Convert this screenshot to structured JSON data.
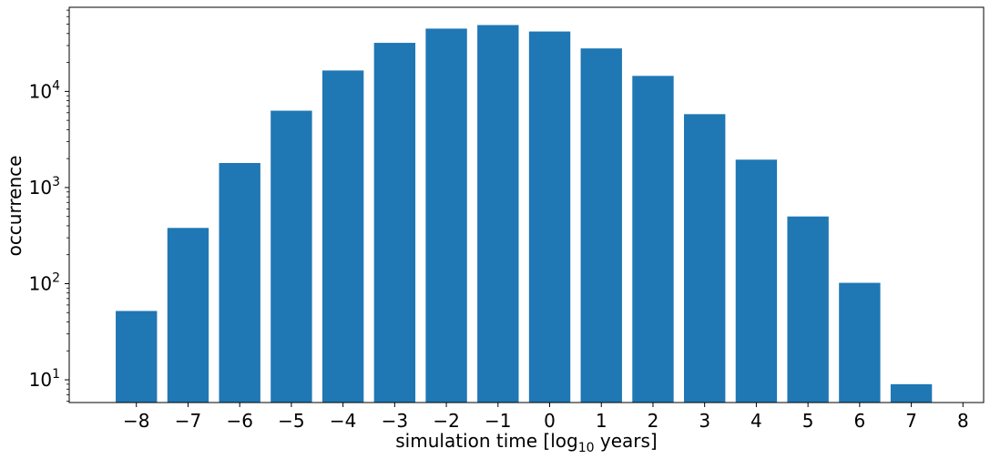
{
  "chart_data": {
    "type": "bar",
    "x": [
      -8,
      -7,
      -6,
      -5,
      -4,
      -3,
      -2,
      -1,
      0,
      1,
      2,
      3,
      4,
      5,
      6,
      7,
      8
    ],
    "values": [
      52,
      380,
      1800,
      6300,
      16500,
      32000,
      45000,
      49000,
      42000,
      28000,
      14500,
      5800,
      1950,
      500,
      102,
      9,
      null
    ],
    "xticks": [
      "−8",
      "−7",
      "−6",
      "−5",
      "−4",
      "−3",
      "−2",
      "−1",
      "0",
      "1",
      "2",
      "3",
      "4",
      "5",
      "6",
      "7",
      "8"
    ],
    "yticks": [
      {
        "value": 10,
        "base": "10",
        "exp": "1"
      },
      {
        "value": 100,
        "base": "10",
        "exp": "2"
      },
      {
        "value": 1000,
        "base": "10",
        "exp": "3"
      },
      {
        "value": 10000,
        "base": "10",
        "exp": "4"
      }
    ],
    "xlabel": {
      "text": "simulation time [log",
      "sub": "10",
      "tail": " years]"
    },
    "ylabel": "occurrence",
    "yscale": "log",
    "ylim": [
      5.8,
      75000
    ],
    "xlim": [
      -9.3,
      8.4
    ],
    "bar_color": "#1f77b4",
    "grid": false
  }
}
